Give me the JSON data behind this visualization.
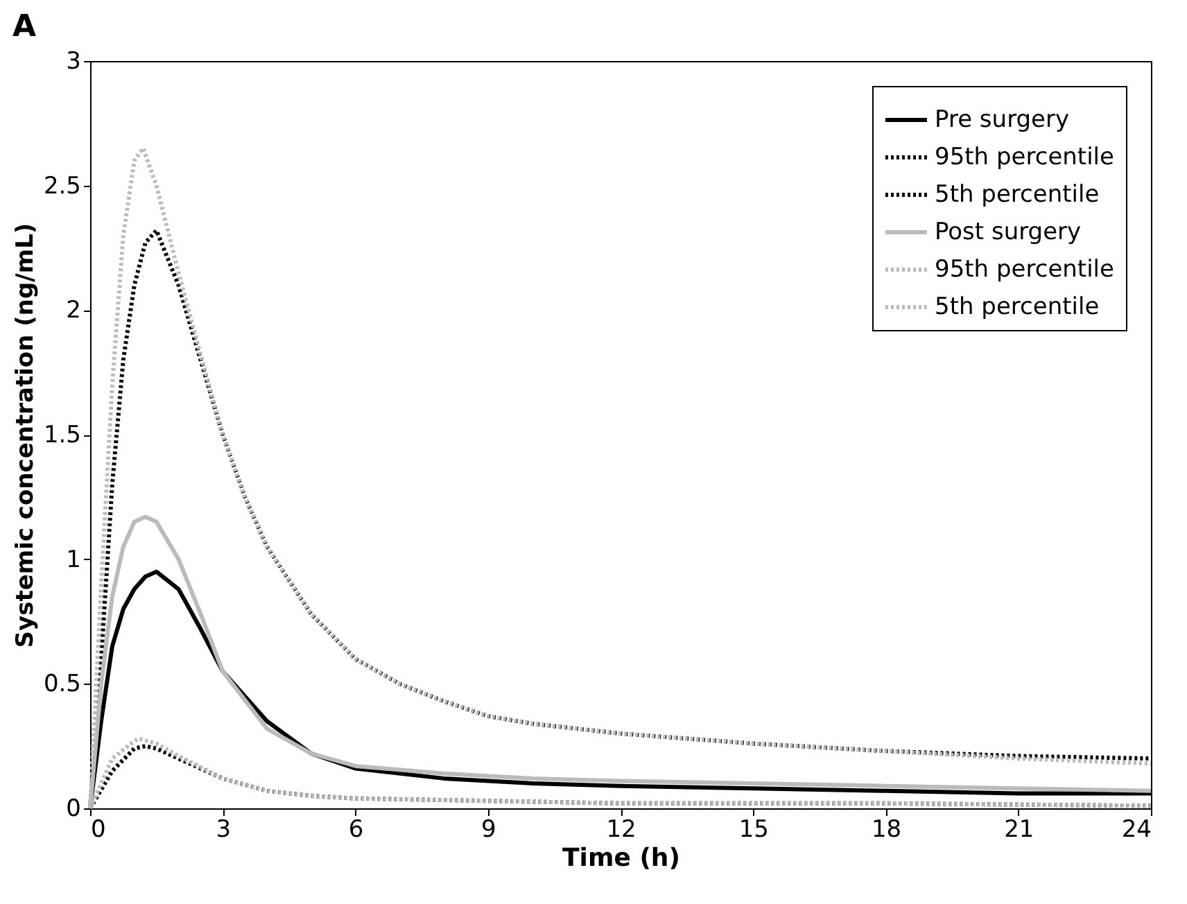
{
  "chart_data": {
    "type": "line",
    "title": "A",
    "xlabel": "Time (h)",
    "ylabel": "Systemic concentration (ng/mL)",
    "xlim": [
      0,
      24
    ],
    "xticks": [
      0,
      3,
      6,
      9,
      12,
      15,
      18,
      21,
      24
    ],
    "ylim": [
      0,
      3
    ],
    "yticks": [
      0,
      0.5,
      1,
      1.5,
      2,
      2.5,
      3
    ],
    "grid": false,
    "legend": "top right",
    "marker": "none",
    "series": [
      {
        "name": "Pre surgery",
        "color": "#000000",
        "line_style": "solid",
        "x": [
          0,
          0.25,
          0.5,
          0.75,
          1,
          1.25,
          1.5,
          2,
          2.5,
          3,
          4,
          5,
          6,
          8,
          10,
          12,
          15,
          18,
          21,
          24
        ],
        "values": [
          0,
          0.35,
          0.65,
          0.8,
          0.88,
          0.93,
          0.95,
          0.88,
          0.72,
          0.55,
          0.35,
          0.22,
          0.16,
          0.12,
          0.1,
          0.09,
          0.08,
          0.07,
          0.06,
          0.06
        ]
      },
      {
        "name": "95th percentile",
        "color": "#000000",
        "line_style": "dotted",
        "x": [
          0,
          0.25,
          0.5,
          0.75,
          1,
          1.25,
          1.5,
          2,
          2.5,
          3,
          3.5,
          4,
          5,
          6,
          7,
          8,
          9,
          10,
          12,
          15,
          18,
          21,
          24
        ],
        "values": [
          0,
          0.6,
          1.3,
          1.8,
          2.1,
          2.27,
          2.32,
          2.1,
          1.8,
          1.5,
          1.25,
          1.05,
          0.78,
          0.6,
          0.5,
          0.43,
          0.37,
          0.34,
          0.3,
          0.26,
          0.23,
          0.21,
          0.2
        ]
      },
      {
        "name": "5th percentile",
        "color": "#000000",
        "line_style": "dotted",
        "x": [
          0,
          0.5,
          1,
          1.25,
          1.5,
          2,
          3,
          4,
          5,
          6,
          9,
          12,
          18,
          24
        ],
        "values": [
          0,
          0.15,
          0.24,
          0.25,
          0.24,
          0.2,
          0.12,
          0.07,
          0.05,
          0.04,
          0.03,
          0.02,
          0.02,
          0.01
        ]
      },
      {
        "name": "Post surgery",
        "color": "#bbbbbb",
        "line_style": "solid",
        "x": [
          0,
          0.25,
          0.5,
          0.75,
          1,
          1.25,
          1.5,
          2,
          2.5,
          3,
          4,
          5,
          6,
          8,
          10,
          12,
          15,
          18,
          21,
          24
        ],
        "values": [
          0,
          0.5,
          0.85,
          1.05,
          1.15,
          1.17,
          1.15,
          1.0,
          0.78,
          0.55,
          0.32,
          0.22,
          0.17,
          0.14,
          0.12,
          0.11,
          0.1,
          0.09,
          0.08,
          0.07
        ]
      },
      {
        "name": "95th percentile",
        "color": "#bbbbbb",
        "line_style": "dotted",
        "x": [
          0,
          0.25,
          0.5,
          0.75,
          1,
          1.2,
          1.5,
          2,
          2.5,
          3,
          3.5,
          4,
          5,
          6,
          7,
          8,
          9,
          10,
          12,
          15,
          18,
          21,
          24
        ],
        "values": [
          0,
          0.9,
          1.7,
          2.3,
          2.6,
          2.65,
          2.5,
          2.15,
          1.82,
          1.5,
          1.25,
          1.05,
          0.78,
          0.6,
          0.5,
          0.43,
          0.37,
          0.34,
          0.3,
          0.26,
          0.23,
          0.2,
          0.18
        ]
      },
      {
        "name": "5th percentile",
        "color": "#bbbbbb",
        "line_style": "dotted",
        "x": [
          0,
          0.5,
          1,
          1.1,
          1.5,
          2,
          3,
          4,
          5,
          6,
          9,
          12,
          18,
          24
        ],
        "values": [
          0,
          0.2,
          0.27,
          0.28,
          0.26,
          0.21,
          0.12,
          0.07,
          0.05,
          0.04,
          0.03,
          0.02,
          0.02,
          0.01
        ]
      }
    ]
  }
}
